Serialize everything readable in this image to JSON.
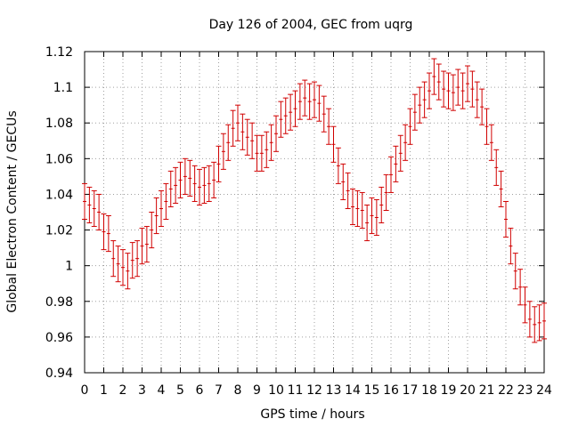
{
  "chart_data": {
    "type": "scatter",
    "title": "Day 126 of 2004, GEC from uqrg",
    "xlabel": "GPS time / hours",
    "ylabel": "Global Electron Content / GECUs",
    "xlim": [
      0,
      24
    ],
    "ylim": [
      0.94,
      1.12
    ],
    "x_ticks": [
      "0",
      "1",
      "2",
      "3",
      "4",
      "5",
      "6",
      "7",
      "8",
      "9",
      "10",
      "11",
      "12",
      "13",
      "14",
      "15",
      "16",
      "17",
      "18",
      "19",
      "20",
      "21",
      "22",
      "23",
      "24"
    ],
    "y_ticks": [
      "0.94",
      "0.96",
      "0.98",
      "1",
      "1.02",
      "1.04",
      "1.06",
      "1.08",
      "1.1",
      "1.12"
    ],
    "grid": true,
    "error_bar_color": "#d00000",
    "series": [
      {
        "x": [
          0.0,
          0.25,
          0.5,
          0.75,
          1.0,
          1.25,
          1.5,
          1.75,
          2.0,
          2.25,
          2.5,
          2.75,
          3.0,
          3.25,
          3.5,
          3.75,
          4.0,
          4.25,
          4.5,
          4.75,
          5.0,
          5.25,
          5.5,
          5.75,
          6.0,
          6.25,
          6.5,
          6.75,
          7.0,
          7.25,
          7.5,
          7.75,
          8.0,
          8.25,
          8.5,
          8.75,
          9.0,
          9.25,
          9.5,
          9.75,
          10.0,
          10.25,
          10.5,
          10.75,
          11.0,
          11.25,
          11.5,
          11.75,
          12.0,
          12.25,
          12.5,
          12.75,
          13.0,
          13.25,
          13.5,
          13.75,
          14.0,
          14.25,
          14.5,
          14.75,
          15.0,
          15.25,
          15.5,
          15.75,
          16.0,
          16.25,
          16.5,
          16.75,
          17.0,
          17.25,
          17.5,
          17.75,
          18.0,
          18.25,
          18.5,
          18.75,
          19.0,
          19.25,
          19.5,
          19.75,
          20.0,
          20.25,
          20.5,
          20.75,
          21.0,
          21.25,
          21.5,
          21.75,
          22.0,
          22.25,
          22.5,
          22.75,
          23.0,
          23.25,
          23.5,
          23.75,
          24.0
        ],
        "y": [
          1.036,
          1.034,
          1.032,
          1.03,
          1.019,
          1.018,
          1.004,
          1.001,
          0.999,
          0.997,
          1.003,
          1.004,
          1.011,
          1.012,
          1.02,
          1.028,
          1.032,
          1.036,
          1.043,
          1.045,
          1.048,
          1.05,
          1.049,
          1.046,
          1.044,
          1.045,
          1.046,
          1.048,
          1.057,
          1.064,
          1.069,
          1.077,
          1.08,
          1.075,
          1.072,
          1.07,
          1.063,
          1.063,
          1.065,
          1.069,
          1.074,
          1.082,
          1.084,
          1.086,
          1.088,
          1.092,
          1.094,
          1.092,
          1.093,
          1.091,
          1.085,
          1.078,
          1.068,
          1.056,
          1.047,
          1.042,
          1.033,
          1.032,
          1.031,
          1.024,
          1.028,
          1.027,
          1.034,
          1.041,
          1.051,
          1.057,
          1.063,
          1.069,
          1.078,
          1.086,
          1.09,
          1.093,
          1.098,
          1.106,
          1.103,
          1.099,
          1.098,
          1.097,
          1.1,
          1.098,
          1.102,
          1.099,
          1.093,
          1.089,
          1.078,
          1.069,
          1.055,
          1.043,
          1.026,
          1.011,
          0.997,
          0.988,
          0.978,
          0.97,
          0.967,
          0.968,
          0.969
        ],
        "err": 0.01
      }
    ]
  }
}
